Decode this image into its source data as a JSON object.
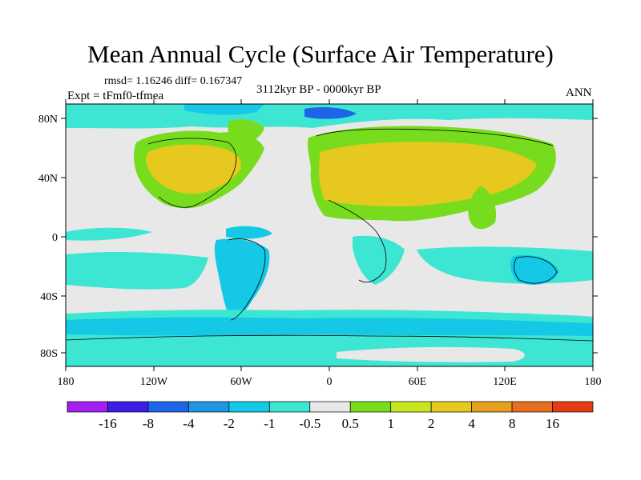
{
  "header": {
    "title": "Mean Annual Cycle (Surface Air Temperature)",
    "stats": "rmsd= 1.16246 diff= 0.167347",
    "experiment": "Expt = tFmf0-tfmea",
    "period": "3112kyr BP - 0000kyr BP",
    "season": "ANN"
  },
  "axes": {
    "y_ticks": [
      "80N",
      "40N",
      "0",
      "40S",
      "80S"
    ],
    "x_ticks": [
      "180",
      "120W",
      "60W",
      "0",
      "60E",
      "120E",
      "180"
    ]
  },
  "colorbar": {
    "labels": [
      "-16",
      "-8",
      "-4",
      "-2",
      "-1",
      "-0.5",
      "0.5",
      "1",
      "2",
      "4",
      "8",
      "16"
    ],
    "colors": [
      "#a020f0",
      "#3c1ee6",
      "#1e64e6",
      "#1e96e6",
      "#14c8e6",
      "#3ce6d2",
      "#e8e8e8",
      "#78dc1e",
      "#c8e61e",
      "#e6c81e",
      "#e6a01e",
      "#e66e1e",
      "#e63c14"
    ]
  }
}
